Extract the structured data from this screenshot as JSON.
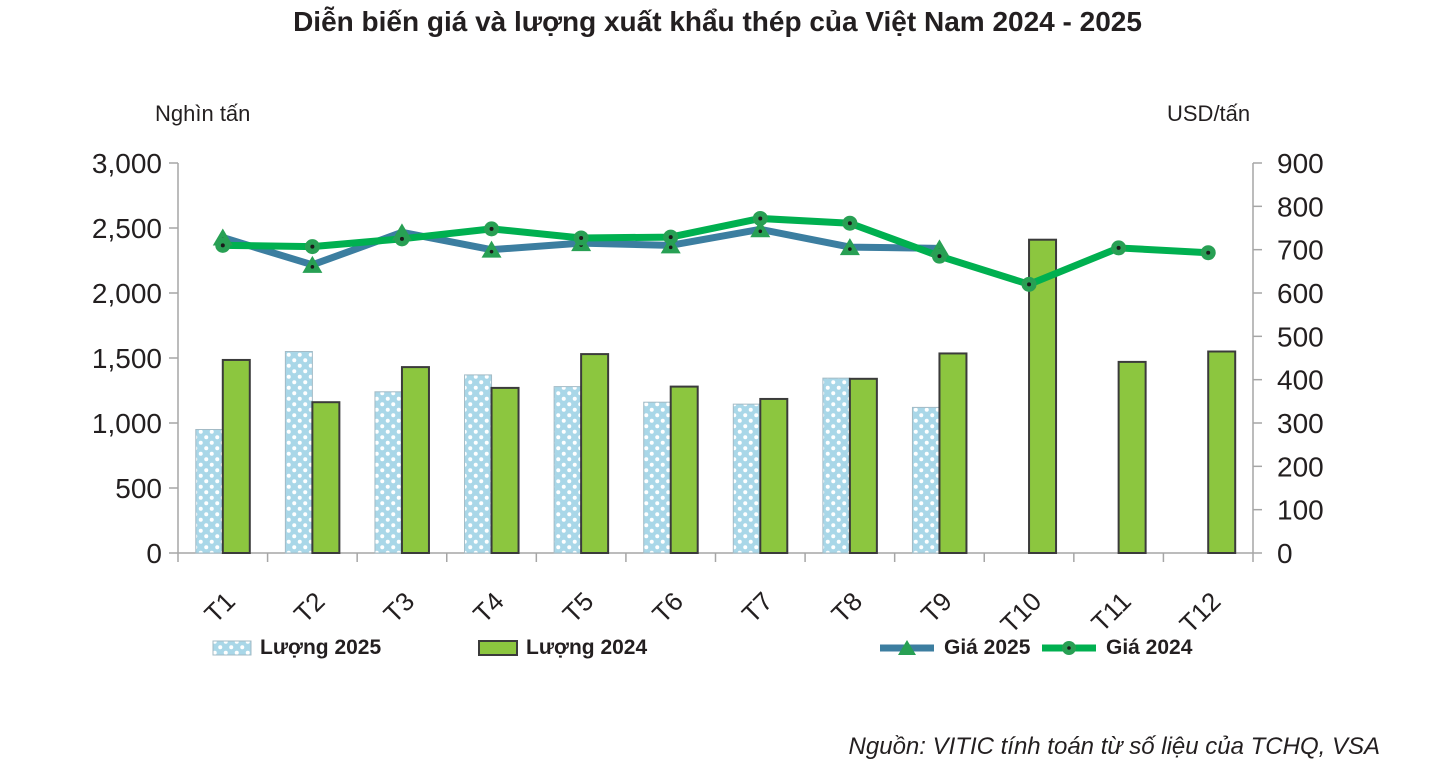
{
  "title": "Diễn biến giá và lượng xuất khẩu thép của Việt Nam 2024 - 2025",
  "left_axis_unit": "Nghìn tấn",
  "right_axis_unit": "USD/tấn",
  "source": "Nguồn: VITIC tính toán từ số liệu của TCHQ, VSA",
  "legend": {
    "items": [
      {
        "label": "Lượng 2025",
        "type": "bar-dotted"
      },
      {
        "label": "Lượng 2024",
        "type": "bar-solid"
      },
      {
        "label": "Giá 2025",
        "type": "line-triangle"
      },
      {
        "label": "Giá 2024",
        "type": "line-circle"
      }
    ]
  },
  "colors": {
    "text": "#231F20",
    "axis": "#A6A6A6",
    "bar_2025_fill": "#A9D7E8",
    "bar_2025_border": "#A3BBC6",
    "bar_2024_fill": "#8CC63F",
    "bar_2024_border": "#3B3B3B",
    "line_2025": "#3C7EA0",
    "line_2024": "#00B050",
    "marker_green": "#28A054",
    "marker_dot": "#1A1A1A"
  },
  "chart_data": {
    "type": "combo-bar-line",
    "title": "Diễn biến giá và lượng xuất khẩu thép của Việt Nam 2024 - 2025",
    "categories": [
      "T1",
      "T2",
      "T3",
      "T4",
      "T5",
      "T6",
      "T7",
      "T8",
      "T9",
      "T10",
      "T11",
      "T12"
    ],
    "series": [
      {
        "name": "Lượng 2025",
        "type": "bar",
        "axis": "left",
        "values": [
          950,
          1550,
          1240,
          1370,
          1280,
          1160,
          1145,
          1345,
          1120,
          null,
          null,
          null
        ]
      },
      {
        "name": "Lượng 2024",
        "type": "bar",
        "axis": "left",
        "values": [
          1485,
          1160,
          1430,
          1270,
          1530,
          1280,
          1185,
          1340,
          1535,
          2410,
          1470,
          1550
        ]
      },
      {
        "name": "Giá 2025",
        "type": "line",
        "axis": "right",
        "marker": "triangle",
        "values": [
          728,
          665,
          740,
          700,
          715,
          710,
          747,
          706,
          703,
          null,
          null,
          null
        ]
      },
      {
        "name": "Giá 2024",
        "type": "line",
        "axis": "right",
        "marker": "circle",
        "values": [
          710,
          707,
          725,
          748,
          727,
          729,
          772,
          761,
          685,
          620,
          704,
          693
        ]
      }
    ],
    "left_axis": {
      "label": "Nghìn tấn",
      "min": 0,
      "max": 3000,
      "step": 500,
      "tick_labels": [
        "0",
        "500",
        "1,000",
        "1,500",
        "2,000",
        "2,500",
        "3,000"
      ]
    },
    "right_axis": {
      "label": "USD/tấn",
      "min": 0,
      "max": 900,
      "step": 100,
      "tick_labels": [
        "0",
        "100",
        "200",
        "300",
        "400",
        "500",
        "600",
        "700",
        "800",
        "900"
      ]
    },
    "grid": false,
    "legend_position": "bottom"
  }
}
